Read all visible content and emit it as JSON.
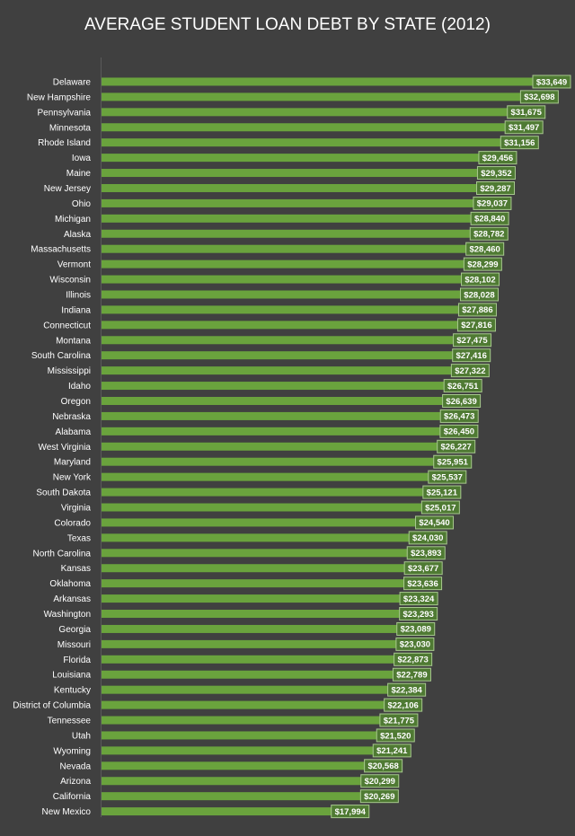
{
  "chart_data": {
    "type": "bar",
    "orientation": "horizontal",
    "title": "AVERAGE STUDENT LOAN DEBT BY STATE (2012)",
    "xlabel": "",
    "ylabel": "",
    "grid": false,
    "legend": "none",
    "bar_color": "#6aa33d",
    "label_box_color": "#4f7a33",
    "background": "#404040",
    "xlim": [
      0,
      33649
    ],
    "categories": [
      "Delaware",
      "New Hampshire",
      "Pennsylvania",
      "Minnesota",
      "Rhode Island",
      "Iowa",
      "Maine",
      "New Jersey",
      "Ohio",
      "Michigan",
      "Alaska",
      "Massachusetts",
      "Vermont",
      "Wisconsin",
      "Illinois",
      "Indiana",
      "Connecticut",
      "Montana",
      "South Carolina",
      "Mississippi",
      "Idaho",
      "Oregon",
      "Nebraska",
      "Alabama",
      "West Virginia",
      "Maryland",
      "New York",
      "South Dakota",
      "Virginia",
      "Colorado",
      "Texas",
      "North Carolina",
      "Kansas",
      "Oklahoma",
      "Arkansas",
      "Washington",
      "Georgia",
      "Missouri",
      "Florida",
      "Louisiana",
      "Kentucky",
      "District of Columbia",
      "Tennessee",
      "Utah",
      "Wyoming",
      "Nevada",
      "Arizona",
      "California",
      "New Mexico"
    ],
    "values": [
      33649,
      32698,
      31675,
      31497,
      31156,
      29456,
      29352,
      29287,
      29037,
      28840,
      28782,
      28460,
      28299,
      28102,
      28028,
      27886,
      27816,
      27475,
      27416,
      27322,
      26751,
      26639,
      26473,
      26450,
      26227,
      25951,
      25537,
      25121,
      25017,
      24540,
      24030,
      23893,
      23677,
      23636,
      23324,
      23293,
      23089,
      23030,
      22873,
      22789,
      22384,
      22106,
      21775,
      21520,
      21241,
      20568,
      20299,
      20269,
      17994
    ],
    "data_labels": [
      "$33,649",
      "$32,698",
      "$31,675",
      "$31,497",
      "$31,156",
      "$29,456",
      "$29,352",
      "$29,287",
      "$29,037",
      "$28,840",
      "$28,782",
      "$28,460",
      "$28,299",
      "$28,102",
      "$28,028",
      "$27,886",
      "$27,816",
      "$27,475",
      "$27,416",
      "$27,322",
      "$26,751",
      "$26,639",
      "$26,473",
      "$26,450",
      "$26,227",
      "$25,951",
      "$25,537",
      "$25,121",
      "$25,017",
      "$24,540",
      "$24,030",
      "$23,893",
      "$23,677",
      "$23,636",
      "$23,324",
      "$23,293",
      "$23,089",
      "$23,030",
      "$22,873",
      "$22,789",
      "$22,384",
      "$22,106",
      "$21,775",
      "$21,520",
      "$21,241",
      "$20,568",
      "$20,299",
      "$20,269",
      "$17,994"
    ]
  }
}
